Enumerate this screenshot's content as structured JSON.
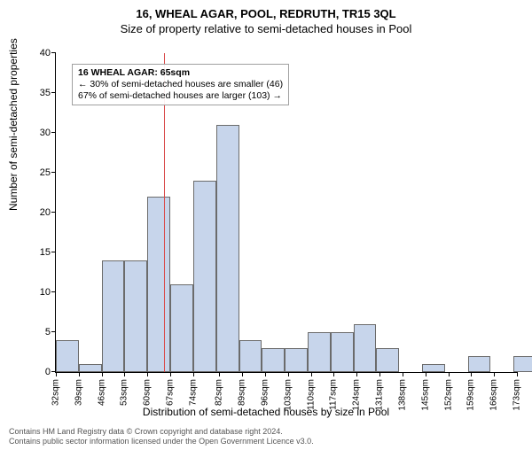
{
  "title_main": "16, WHEAL AGAR, POOL, REDRUTH, TR15 3QL",
  "title_sub": "Size of property relative to semi-detached houses in Pool",
  "ylabel": "Number of semi-detached properties",
  "xlabel": "Distribution of semi-detached houses by size in Pool",
  "footer_line1": "Contains HM Land Registry data © Crown copyright and database right 2024.",
  "footer_line2": "Contains public sector information licensed under the Open Government Licence v3.0.",
  "chart": {
    "type": "histogram",
    "ylim": [
      0,
      40
    ],
    "ytick_step": 5,
    "xticks": [
      32,
      39,
      46,
      53,
      60,
      67,
      74,
      82,
      89,
      96,
      103,
      110,
      117,
      124,
      131,
      138,
      145,
      152,
      159,
      166,
      173
    ],
    "xtick_suffix": "sqm",
    "bars": {
      "bin_start": 32,
      "bin_width": 7,
      "values": [
        4,
        1,
        14,
        14,
        22,
        11,
        24,
        31,
        4,
        3,
        3,
        5,
        5,
        6,
        3,
        0,
        1,
        0,
        2,
        0,
        2
      ],
      "fill_color": "#c7d5eb",
      "border_color": "#6b6b6b",
      "border_width": 1
    },
    "marker": {
      "x": 65,
      "color": "#d94a4a",
      "width": 1.5
    },
    "annotation": {
      "title": "16 WHEAL AGAR: 65sqm",
      "line_left": "← 30% of semi-detached houses are smaller (46)",
      "line_right": "67% of semi-detached houses are larger (103) →"
    },
    "background_color": "#ffffff",
    "axis_color": "#000000",
    "tick_fontsize": 11,
    "label_fontsize": 12,
    "title_fontsize": 13
  }
}
